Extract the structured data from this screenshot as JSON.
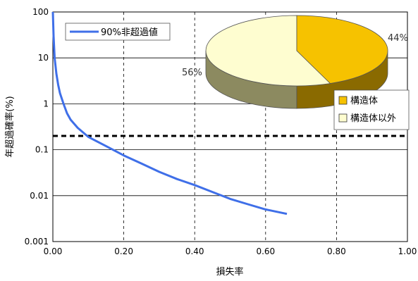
{
  "chart_data": {
    "type": "line",
    "xlabel": "損失率",
    "ylabel": "年超過確率(%)",
    "xlim": [
      0.0,
      1.0
    ],
    "ylim": [
      0.001,
      100
    ],
    "y_scale": "log",
    "x_ticks": [
      "0.00",
      "0.20",
      "0.40",
      "0.60",
      "0.80",
      "1.00"
    ],
    "x_tick_values": [
      0.0,
      0.2,
      0.4,
      0.6,
      0.8,
      1.0
    ],
    "y_ticks": [
      "0.001",
      "0.01",
      "0.1",
      "1",
      "10",
      "100"
    ],
    "y_tick_values": [
      0.001,
      0.01,
      0.1,
      1,
      10,
      100
    ],
    "x_gridlines_dashed": [
      0.2,
      0.4,
      0.6,
      0.8,
      1.0
    ],
    "series": [
      {
        "name": "90%非超過値",
        "color": "#3f6fe8",
        "points": [
          [
            0.0,
            100
          ],
          [
            0.002,
            30
          ],
          [
            0.005,
            10
          ],
          [
            0.01,
            4.5
          ],
          [
            0.015,
            2.6
          ],
          [
            0.02,
            1.7
          ],
          [
            0.03,
            1.0
          ],
          [
            0.04,
            0.62
          ],
          [
            0.05,
            0.45
          ],
          [
            0.07,
            0.3
          ],
          [
            0.1,
            0.19
          ],
          [
            0.15,
            0.12
          ],
          [
            0.2,
            0.075
          ],
          [
            0.25,
            0.05
          ],
          [
            0.3,
            0.033
          ],
          [
            0.35,
            0.023
          ],
          [
            0.4,
            0.017
          ],
          [
            0.45,
            0.012
          ],
          [
            0.5,
            0.0085
          ],
          [
            0.55,
            0.0065
          ],
          [
            0.6,
            0.005
          ],
          [
            0.66,
            0.004
          ]
        ]
      }
    ],
    "threshold_line": {
      "y": 0.2,
      "style": "dashed",
      "color": "#000000"
    },
    "inset_pie": {
      "slices": [
        {
          "label": "構造体",
          "value": 44,
          "label_text": "44%",
          "color": "#f6c200"
        },
        {
          "label": "構造体以外",
          "value": 56,
          "label_text": "56%",
          "color": "#fefdd0"
        }
      ],
      "legend": [
        "構造体",
        "構造体以外"
      ]
    },
    "legend_placement": "top-left",
    "grid": true
  }
}
